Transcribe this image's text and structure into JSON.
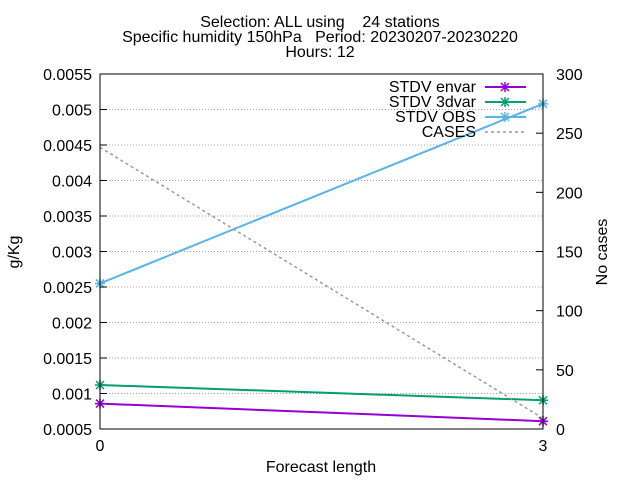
{
  "chart_data": {
    "type": "line",
    "title_lines": [
      "Selection: ALL using    24 stations",
      "Specific humidity 150hPa   Period: 20230207-20230220",
      "Hours: 12"
    ],
    "xlabel": "Forecast length",
    "ylabel": "g/Kg",
    "y2label": "No cases",
    "x": [
      0,
      3
    ],
    "xticks": [
      "0",
      "3"
    ],
    "xlim": [
      0,
      3
    ],
    "ylim": [
      0.0005,
      0.0055
    ],
    "yticks": [
      "0.0005",
      "0.001",
      "0.0015",
      "0.002",
      "0.0025",
      "0.003",
      "0.0035",
      "0.004",
      "0.0045",
      "0.005",
      "0.0055"
    ],
    "y2lim": [
      0,
      300
    ],
    "y2ticks": [
      "0",
      "50",
      "100",
      "150",
      "200",
      "250",
      "300"
    ],
    "grid": "horizontal at y ticks",
    "legend_position": "top-right",
    "series": [
      {
        "name": "STDV envar",
        "axis": "y",
        "values": [
          0.000858,
          0.00061
        ],
        "color": "#9400d3",
        "dash": false,
        "marker": "x"
      },
      {
        "name": "STDV 3dvar",
        "axis": "y",
        "values": [
          0.00112,
          0.000905
        ],
        "color": "#009e73",
        "dash": false,
        "marker": "x"
      },
      {
        "name": "STDV OBS",
        "axis": "y",
        "values": [
          0.00255,
          0.00508
        ],
        "color": "#56b4e9",
        "dash": false,
        "marker": "x"
      },
      {
        "name": "CASES",
        "axis": "y2",
        "values": [
          238,
          9
        ],
        "color": "#999999",
        "dash": true,
        "marker": ""
      }
    ]
  }
}
